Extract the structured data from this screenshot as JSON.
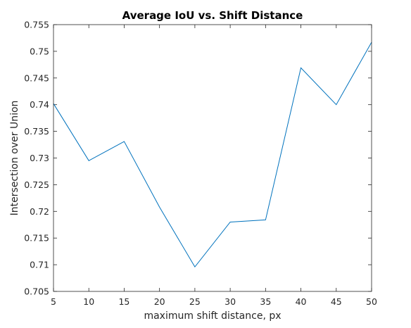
{
  "chart_data": {
    "type": "line",
    "title": "Average IoU vs. Shift Distance",
    "xlabel": "maximum shift distance, px",
    "ylabel": "Intersection over Union",
    "xlim": [
      5,
      50
    ],
    "ylim": [
      0.705,
      0.755
    ],
    "xticks": [
      "5",
      "10",
      "15",
      "20",
      "25",
      "30",
      "35",
      "40",
      "45",
      "50"
    ],
    "yticks": [
      "0.705",
      "0.71",
      "0.715",
      "0.72",
      "0.725",
      "0.73",
      "0.735",
      "0.74",
      "0.745",
      "0.75",
      "0.755"
    ],
    "grid": false,
    "series": [
      {
        "color": "#0072BD",
        "x": [
          5,
          10,
          15,
          20,
          25,
          30,
          35,
          40,
          45,
          50
        ],
        "y": [
          0.7402,
          0.7295,
          0.7331,
          0.7208,
          0.7096,
          0.718,
          0.7184,
          0.7469,
          0.74,
          0.7517
        ]
      }
    ]
  }
}
